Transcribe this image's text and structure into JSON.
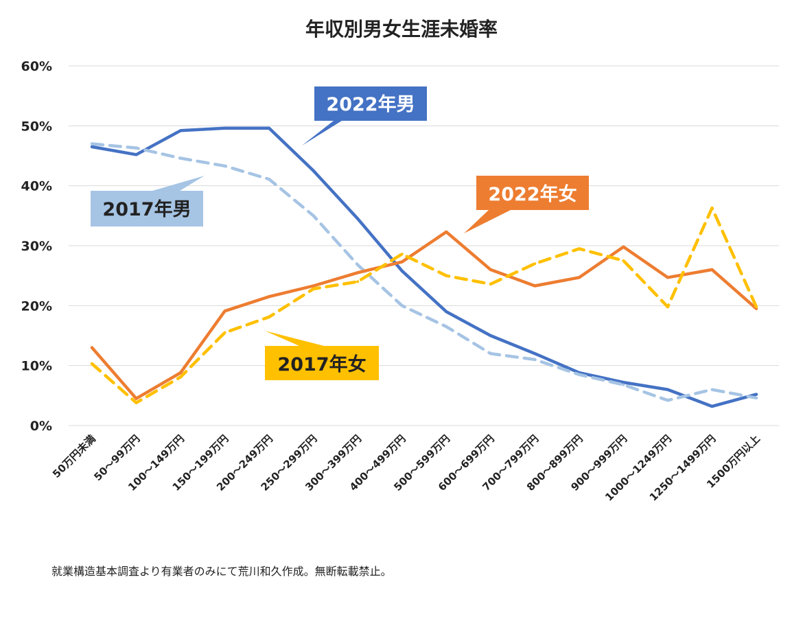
{
  "chart_data": {
    "type": "line",
    "title": "年収別男女生涯未婚率",
    "ylim": [
      0,
      60
    ],
    "yticks": [
      "0%",
      "10%",
      "20%",
      "30%",
      "40%",
      "50%",
      "60%"
    ],
    "grid": true,
    "categories": [
      "50万円未満",
      "50～99万円",
      "100～149万円",
      "150～199万円",
      "200～249万円",
      "250～299万円",
      "300～399万円",
      "400～499万円",
      "500～599万円",
      "600～699万円",
      "700～799万円",
      "800～899万円",
      "900～999万円",
      "1000～1249万円",
      "1250～1499万円",
      "1500万円以上"
    ],
    "series": [
      {
        "name": "2022年男",
        "color": "#4472c4",
        "dashed": false,
        "values": [
          46.5,
          45.2,
          49.2,
          49.6,
          49.6,
          42.5,
          34.5,
          25.8,
          19.0,
          15.0,
          12.0,
          8.8,
          7.2,
          6.0,
          3.2,
          5.2
        ]
      },
      {
        "name": "2017年男",
        "color": "#a6c4e4",
        "dashed": true,
        "values": [
          47.0,
          46.3,
          44.6,
          43.3,
          41.1,
          35.0,
          26.8,
          20.0,
          16.5,
          12.0,
          11.0,
          8.5,
          6.8,
          4.2,
          6.0,
          4.6
        ]
      },
      {
        "name": "2022年女",
        "color": "#ed7d31",
        "dashed": false,
        "values": [
          13.0,
          4.5,
          8.8,
          19.1,
          21.5,
          23.3,
          25.5,
          27.3,
          32.3,
          26.0,
          23.3,
          24.7,
          29.8,
          24.7,
          26.0,
          19.5
        ]
      },
      {
        "name": "2017年女",
        "color": "#ffc000",
        "dashed": true,
        "values": [
          10.3,
          3.8,
          8.1,
          15.5,
          18.1,
          22.8,
          24.0,
          28.6,
          25.0,
          23.6,
          27.0,
          29.5,
          27.5,
          19.8,
          36.3,
          19.8
        ]
      }
    ]
  },
  "callouts": {
    "male2022": "2022年男",
    "male2017": "2017年男",
    "female2022": "2022年女",
    "female2017": "2017年女"
  },
  "footnote": "就業構造基本調査より有業者のみにて荒川和久作成。無断転載禁止。"
}
